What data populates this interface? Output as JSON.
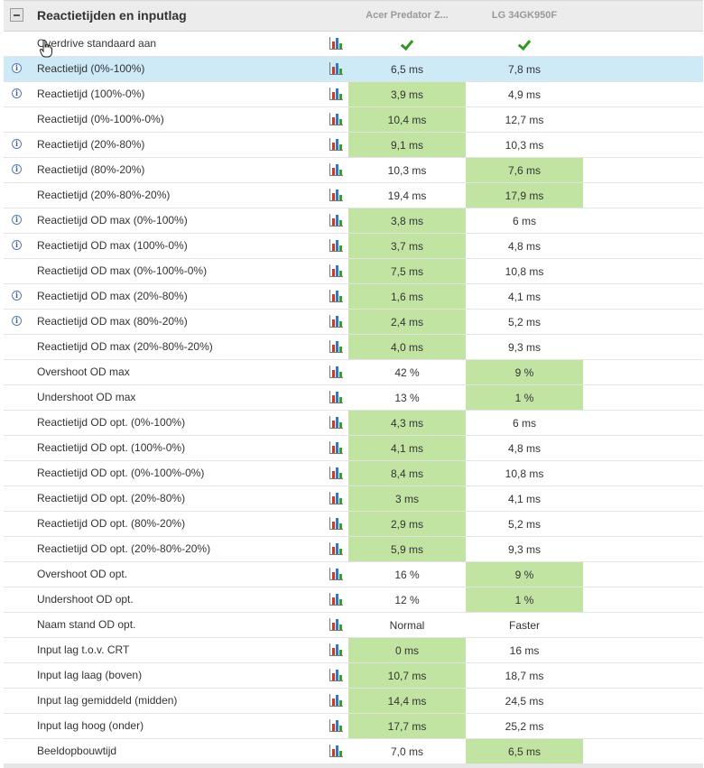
{
  "section": {
    "title": "Reactietijden en inputlag",
    "columns": [
      "Acer Predator Z...",
      "LG 34GK950F"
    ]
  },
  "rows": [
    {
      "label": "Overdrive standaard aan",
      "info": false,
      "a": "",
      "b": "",
      "check": true,
      "best": ""
    },
    {
      "label": "Reactietijd (0%-100%)",
      "info": true,
      "a": "6,5 ms",
      "b": "7,8 ms",
      "best": "",
      "highlight": true
    },
    {
      "label": "Reactietijd (100%-0%)",
      "info": true,
      "a": "3,9 ms",
      "b": "4,9 ms",
      "best": "a"
    },
    {
      "label": "Reactietijd (0%-100%-0%)",
      "info": false,
      "a": "10,4 ms",
      "b": "12,7 ms",
      "best": "a"
    },
    {
      "label": "Reactietijd (20%-80%)",
      "info": true,
      "a": "9,1 ms",
      "b": "10,3 ms",
      "best": "a"
    },
    {
      "label": "Reactietijd (80%-20%)",
      "info": true,
      "a": "10,3 ms",
      "b": "7,6 ms",
      "best": "b"
    },
    {
      "label": "Reactietijd (20%-80%-20%)",
      "info": false,
      "a": "19,4 ms",
      "b": "17,9 ms",
      "best": "b"
    },
    {
      "label": "Reactietijd OD max (0%-100%)",
      "info": true,
      "a": "3,8 ms",
      "b": "6 ms",
      "best": "a"
    },
    {
      "label": "Reactietijd OD max (100%-0%)",
      "info": true,
      "a": "3,7 ms",
      "b": "4,8 ms",
      "best": "a"
    },
    {
      "label": "Reactietijd OD max (0%-100%-0%)",
      "info": false,
      "a": "7,5 ms",
      "b": "10,8 ms",
      "best": "a"
    },
    {
      "label": "Reactietijd OD max (20%-80%)",
      "info": true,
      "a": "1,6 ms",
      "b": "4,1 ms",
      "best": "a"
    },
    {
      "label": "Reactietijd OD max (80%-20%)",
      "info": true,
      "a": "2,4 ms",
      "b": "5,2 ms",
      "best": "a"
    },
    {
      "label": "Reactietijd OD max (20%-80%-20%)",
      "info": false,
      "a": "4,0 ms",
      "b": "9,3 ms",
      "best": "a"
    },
    {
      "label": "Overshoot OD max",
      "info": false,
      "a": "42 %",
      "b": "9 %",
      "best": "b"
    },
    {
      "label": "Undershoot OD max",
      "info": false,
      "a": "13 %",
      "b": "1 %",
      "best": "b"
    },
    {
      "label": "Reactietijd OD opt. (0%-100%)",
      "info": false,
      "a": "4,3 ms",
      "b": "6 ms",
      "best": "a"
    },
    {
      "label": "Reactietijd OD opt. (100%-0%)",
      "info": false,
      "a": "4,1 ms",
      "b": "4,8 ms",
      "best": "a"
    },
    {
      "label": "Reactietijd OD opt. (0%-100%-0%)",
      "info": false,
      "a": "8,4 ms",
      "b": "10,8 ms",
      "best": "a"
    },
    {
      "label": "Reactietijd OD opt. (20%-80%)",
      "info": false,
      "a": "3 ms",
      "b": "4,1 ms",
      "best": "a"
    },
    {
      "label": "Reactietijd OD opt. (80%-20%)",
      "info": false,
      "a": "2,9 ms",
      "b": "5,2 ms",
      "best": "a"
    },
    {
      "label": "Reactietijd OD opt. (20%-80%-20%)",
      "info": false,
      "a": "5,9 ms",
      "b": "9,3 ms",
      "best": "a"
    },
    {
      "label": "Overshoot OD opt.",
      "info": false,
      "a": "16 %",
      "b": "9 %",
      "best": "b"
    },
    {
      "label": "Undershoot OD opt.",
      "info": false,
      "a": "12 %",
      "b": "1 %",
      "best": "b"
    },
    {
      "label": "Naam stand OD opt.",
      "info": false,
      "a": "Normal",
      "b": "Faster",
      "best": ""
    },
    {
      "label": "Input lag t.o.v. CRT",
      "info": false,
      "a": "0 ms",
      "b": "16 ms",
      "best": "a"
    },
    {
      "label": "Input lag laag (boven)",
      "info": false,
      "a": "10,7 ms",
      "b": "18,7 ms",
      "best": "a"
    },
    {
      "label": "Input lag gemiddeld (midden)",
      "info": false,
      "a": "14,4 ms",
      "b": "24,5 ms",
      "best": "a"
    },
    {
      "label": "Input lag hoog (onder)",
      "info": false,
      "a": "17,7 ms",
      "b": "25,2 ms",
      "best": "a"
    },
    {
      "label": "Beeldopbouwtijd",
      "info": false,
      "a": "7,0 ms",
      "b": "6,5 ms",
      "best": "b"
    }
  ],
  "colors": {
    "best_highlight": "#c2e4a3",
    "row_hover": "#cdeaf6",
    "check_green": "#2f9a1f"
  }
}
